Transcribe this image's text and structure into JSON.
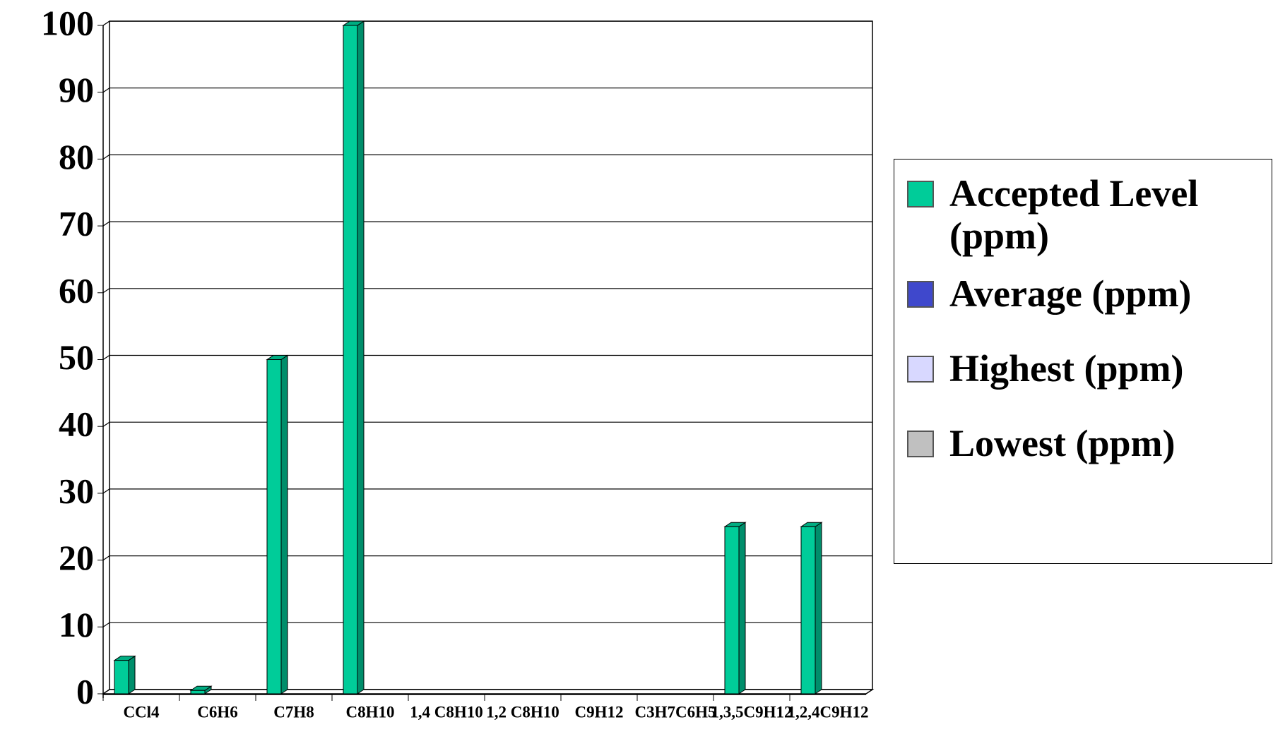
{
  "chart_data": {
    "type": "bar",
    "categories": [
      "CCl4",
      "C6H6",
      "C7H8",
      "C8H10",
      "1,4 C8H10",
      "1,2 C8H10",
      "C9H12",
      "C3H7C6H5",
      "1,3,5C9H12",
      "1,2,4C9H12"
    ],
    "series": [
      {
        "name": "Accepted Level (ppm)",
        "color": "#00cc99",
        "values": [
          5,
          0.5,
          50,
          100,
          null,
          null,
          null,
          null,
          25,
          25
        ]
      },
      {
        "name": "Average (ppm)",
        "color": "#3f48cc",
        "values": [
          null,
          null,
          null,
          null,
          null,
          null,
          null,
          null,
          null,
          null
        ]
      },
      {
        "name": "Highest (ppm)",
        "color": "#d8d8ff",
        "values": [
          null,
          null,
          null,
          null,
          null,
          null,
          null,
          null,
          null,
          null
        ]
      },
      {
        "name": "Lowest (ppm)",
        "color": "#c0c0c0",
        "values": [
          null,
          null,
          null,
          null,
          null,
          null,
          null,
          null,
          null,
          null
        ]
      }
    ],
    "ylim": [
      0,
      100
    ],
    "yticks": [
      0,
      10,
      20,
      30,
      40,
      50,
      60,
      70,
      80,
      90,
      100
    ],
    "grid": true,
    "legend": "right"
  }
}
